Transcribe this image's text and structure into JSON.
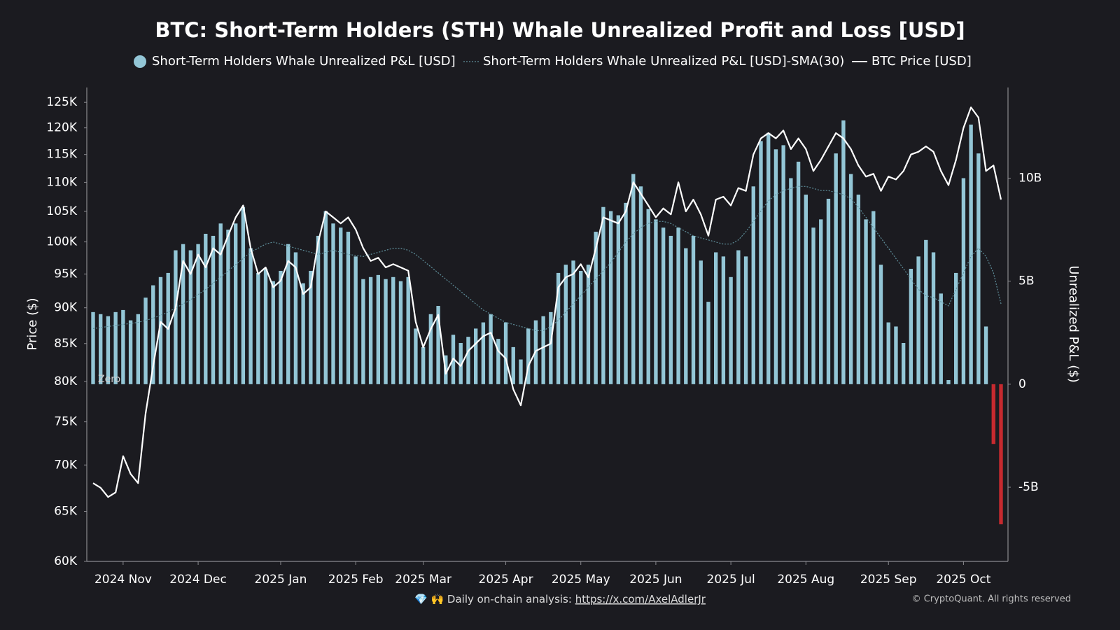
{
  "chart_data": {
    "type": "combo",
    "title": "BTC: Short-Term Holders (STH) Whale Unrealized Profit and Loss [USD]",
    "y_label": "Price ($)",
    "y2_label": "Unrealized P&L ($)",
    "zero_label": "Zero",
    "yscale": "log",
    "grid": false,
    "ylim": [
      60000,
      128000
    ],
    "yticks": [
      {
        "value": 60000,
        "label": "60K"
      },
      {
        "value": 65000,
        "label": "65K"
      },
      {
        "value": 70000,
        "label": "70K"
      },
      {
        "value": 75000,
        "label": "75K"
      },
      {
        "value": 80000,
        "label": "80K"
      },
      {
        "value": 85000,
        "label": "85K"
      },
      {
        "value": 90000,
        "label": "90K"
      },
      {
        "value": 95000,
        "label": "95K"
      },
      {
        "value": 100000,
        "label": "100K"
      },
      {
        "value": 105000,
        "label": "105K"
      },
      {
        "value": 110000,
        "label": "110K"
      },
      {
        "value": 115000,
        "label": "115K"
      },
      {
        "value": 120000,
        "label": "120K"
      },
      {
        "value": 125000,
        "label": "125K"
      }
    ],
    "y2lim": [
      -8600000000.0,
      14400000000.0
    ],
    "y2ticks": [
      {
        "value": -5000000000.0,
        "label": "-5B"
      },
      0,
      {
        "value": 5000000000.0,
        "label": "5B"
      },
      {
        "value": 10000000000.0,
        "label": "10B"
      }
    ],
    "categories": [
      null,
      null,
      null,
      null,
      "2024 Nov",
      null,
      null,
      null,
      null,
      null,
      null,
      null,
      null,
      null,
      "2024 Dec",
      null,
      null,
      null,
      null,
      null,
      null,
      null,
      null,
      null,
      null,
      "2025 Jan",
      null,
      null,
      null,
      null,
      null,
      null,
      null,
      null,
      null,
      "2025 Feb",
      null,
      null,
      null,
      null,
      null,
      null,
      null,
      null,
      "2025 Mar",
      null,
      null,
      null,
      null,
      null,
      null,
      null,
      null,
      null,
      null,
      "2025 Apr",
      null,
      null,
      null,
      null,
      null,
      null,
      null,
      null,
      null,
      "2025 May",
      null,
      null,
      null,
      null,
      null,
      null,
      null,
      null,
      null,
      "2025 Jun",
      null,
      null,
      null,
      null,
      null,
      null,
      null,
      null,
      null,
      "2025 Jul",
      null,
      null,
      null,
      null,
      null,
      null,
      null,
      null,
      null,
      "2025 Aug",
      null,
      null,
      null,
      null,
      null,
      null,
      null,
      null,
      null,
      null,
      "2025 Sep",
      null,
      null,
      null,
      null,
      null,
      null,
      null,
      null,
      null,
      "2025 Oct",
      null,
      null,
      null,
      null,
      null
    ],
    "series": [
      {
        "name": "Short-Term Holders Whale Unrealized P&L [USD]",
        "type": "bar",
        "axis": "y2",
        "color": "#93c6d6",
        "negative_color": "#c62a2f",
        "values": [
          3500000000.0,
          3400000000.0,
          3300000000.0,
          3500000000.0,
          3600000000.0,
          3100000000.0,
          3400000000.0,
          4200000000.0,
          4800000000.0,
          5200000000.0,
          5400000000.0,
          6500000000.0,
          6800000000.0,
          6500000000.0,
          6800000000.0,
          7300000000.0,
          7200000000.0,
          7800000000.0,
          7500000000.0,
          7800000000.0,
          8600000000.0,
          6600000000.0,
          5400000000.0,
          5600000000.0,
          5000000000.0,
          5500000000.0,
          6800000000.0,
          6400000000.0,
          4900000000.0,
          5500000000.0,
          7200000000.0,
          8400000000.0,
          7800000000.0,
          7600000000.0,
          7400000000.0,
          6200000000.0,
          5100000000.0,
          5200000000.0,
          5300000000.0,
          5100000000.0,
          5200000000.0,
          5000000000.0,
          5200000000.0,
          2700000000.0,
          1800000000.0,
          3400000000.0,
          3800000000.0,
          1400000000.0,
          2400000000.0,
          2000000000.0,
          2300000000.0,
          2700000000.0,
          3000000000.0,
          3400000000.0,
          2200000000.0,
          3000000000.0,
          1800000000.0,
          1200000000.0,
          2700000000.0,
          3100000000.0,
          3300000000.0,
          3500000000.0,
          5400000000.0,
          5800000000.0,
          6000000000.0,
          5500000000.0,
          5800000000.0,
          7400000000.0,
          8600000000.0,
          8400000000.0,
          8200000000.0,
          8800000000.0,
          10200000000.0,
          9600000000.0,
          8500000000.0,
          8000000000.0,
          7600000000.0,
          7200000000.0,
          7600000000.0,
          6600000000.0,
          7200000000.0,
          6000000000.0,
          4000000000.0,
          6400000000.0,
          6200000000.0,
          5200000000.0,
          6500000000.0,
          6200000000.0,
          9600000000.0,
          11800000000.0,
          12200000000.0,
          11400000000.0,
          11600000000.0,
          10000000000.0,
          10800000000.0,
          9200000000.0,
          7600000000.0,
          8000000000.0,
          9000000000.0,
          11200000000.0,
          12800000000.0,
          10200000000.0,
          9200000000.0,
          8000000000.0,
          8400000000.0,
          5800000000.0,
          3000000000.0,
          2800000000.0,
          2000000000.0,
          5600000000.0,
          6200000000.0,
          7000000000.0,
          6400000000.0,
          4400000000.0,
          200000000.0,
          5400000000.0,
          10000000000.0,
          12600000000.0,
          11200000000.0,
          2800000000.0,
          -2900000000.0,
          -6800000000.0
        ]
      },
      {
        "name": "Short-Term Holders Whale Unrealized P&L [USD]-SMA(30)",
        "type": "line",
        "dashed": true,
        "axis": "y2",
        "color": "#5f8f9b",
        "values": [
          2700000000.0,
          2750000000.0,
          2800000000.0,
          2850000000.0,
          2900000000.0,
          2950000000.0,
          3000000000.0,
          3100000000.0,
          3200000000.0,
          3350000000.0,
          3500000000.0,
          3700000000.0,
          3900000000.0,
          4100000000.0,
          4350000000.0,
          4600000000.0,
          4900000000.0,
          5200000000.0,
          5500000000.0,
          5800000000.0,
          6100000000.0,
          6400000000.0,
          6600000000.0,
          6800000000.0,
          6900000000.0,
          6800000000.0,
          6700000000.0,
          6600000000.0,
          6500000000.0,
          6400000000.0,
          6300000000.0,
          6400000000.0,
          6500000000.0,
          6400000000.0,
          6300000000.0,
          6250000000.0,
          6200000000.0,
          6300000000.0,
          6400000000.0,
          6500000000.0,
          6600000000.0,
          6600000000.0,
          6500000000.0,
          6300000000.0,
          6000000000.0,
          5700000000.0,
          5400000000.0,
          5100000000.0,
          4800000000.0,
          4500000000.0,
          4200000000.0,
          3900000000.0,
          3600000000.0,
          3400000000.0,
          3200000000.0,
          3000000000.0,
          2900000000.0,
          2800000000.0,
          2700000000.0,
          2600000000.0,
          2600000000.0,
          2800000000.0,
          3100000000.0,
          3500000000.0,
          3900000000.0,
          4300000000.0,
          4700000000.0,
          5100000000.0,
          5500000000.0,
          5900000000.0,
          6400000000.0,
          6900000000.0,
          7300000000.0,
          7600000000.0,
          7800000000.0,
          7900000000.0,
          7900000000.0,
          7800000000.0,
          7600000000.0,
          7400000000.0,
          7200000000.0,
          7100000000.0,
          7000000000.0,
          6900000000.0,
          6800000000.0,
          6800000000.0,
          7000000000.0,
          7400000000.0,
          7900000000.0,
          8400000000.0,
          8900000000.0,
          9200000000.0,
          9400000000.0,
          9500000000.0,
          9600000000.0,
          9600000000.0,
          9500000000.0,
          9400000000.0,
          9400000000.0,
          9300000000.0,
          9200000000.0,
          9000000000.0,
          8600000000.0,
          8100000000.0,
          7600000000.0,
          7100000000.0,
          6600000000.0,
          6100000000.0,
          5600000000.0,
          5100000000.0,
          4600000000.0,
          4300000000.0,
          4200000000.0,
          4000000000.0,
          3800000000.0,
          4600000000.0,
          5400000000.0,
          6200000000.0,
          6600000000.0,
          6200000000.0,
          5400000000.0,
          3900000000.0
        ]
      },
      {
        "name": "BTC Price [USD]",
        "type": "line",
        "axis": "y",
        "color": "#ffffff",
        "values": [
          68000,
          67500,
          66500,
          67000,
          71000,
          69000,
          68000,
          76000,
          82000,
          88000,
          87000,
          90000,
          97000,
          95000,
          98000,
          96000,
          99000,
          98000,
          101000,
          104000,
          106000,
          99000,
          95000,
          96000,
          93000,
          94000,
          97000,
          96000,
          92000,
          93000,
          100000,
          105000,
          104000,
          103000,
          104000,
          102000,
          99000,
          97000,
          97500,
          96000,
          96500,
          96000,
          95500,
          88000,
          84500,
          87000,
          89000,
          81000,
          83000,
          82000,
          84000,
          85000,
          86000,
          86500,
          84000,
          83000,
          79000,
          77000,
          82000,
          84000,
          84500,
          85000,
          93000,
          94500,
          95000,
          96500,
          94500,
          99000,
          104000,
          103500,
          103000,
          105000,
          110000,
          108000,
          106000,
          104000,
          105500,
          104500,
          110000,
          105000,
          107000,
          104500,
          101000,
          107000,
          107500,
          106000,
          109000,
          108500,
          115000,
          118000,
          119000,
          118000,
          119500,
          116000,
          118000,
          116000,
          112000,
          114000,
          116500,
          119000,
          118000,
          116000,
          113000,
          111000,
          111500,
          108500,
          111000,
          110500,
          112000,
          115000,
          115500,
          116500,
          115500,
          112000,
          109500,
          114000,
          120000,
          124000,
          122000,
          112000,
          113000,
          107000
        ]
      }
    ]
  },
  "footer": {
    "text": "💎 🙌 Daily on-chain analysis:",
    "link": "https://x.com/AxelAdlerJr"
  },
  "copyright": "© CryptoQuant. All rights reserved"
}
